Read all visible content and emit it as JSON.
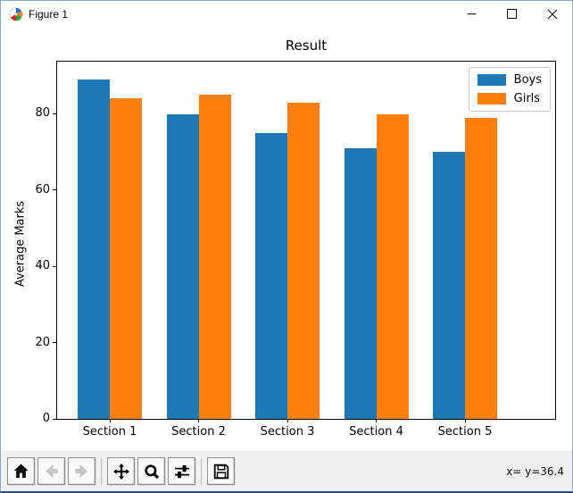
{
  "window": {
    "title": "Figure 1",
    "controls": [
      {
        "name": "minimize"
      },
      {
        "name": "maximize"
      },
      {
        "name": "close"
      }
    ]
  },
  "chart_data": {
    "type": "bar",
    "title": "Result",
    "xlabel": "",
    "ylabel": "Average Marks",
    "categories": [
      "Section 1",
      "Section 2",
      "Section 3",
      "Section 4",
      "Section 5"
    ],
    "series": [
      {
        "name": "Boys",
        "color": "#1f77b4",
        "values": [
          89,
          80,
          75,
          71,
          70
        ]
      },
      {
        "name": "Girls",
        "color": "#ff7f0e",
        "values": [
          84,
          85,
          83,
          80,
          79
        ]
      }
    ],
    "yticks": [
      0,
      20,
      40,
      60,
      80
    ],
    "ylim": [
      0,
      93.7
    ],
    "grid": false,
    "legend_position": "upper right"
  },
  "toolbar": {
    "buttons": [
      {
        "icon": "home-icon",
        "enabled": true
      },
      {
        "icon": "back-arrow-icon",
        "enabled": false
      },
      {
        "icon": "forward-arrow-icon",
        "enabled": false
      },
      {
        "icon": "pan-icon",
        "enabled": true
      },
      {
        "icon": "zoom-icon",
        "enabled": true
      },
      {
        "icon": "configure-subplots-icon",
        "enabled": true
      },
      {
        "icon": "save-icon",
        "enabled": true
      }
    ],
    "status": "x= y=36.4"
  }
}
